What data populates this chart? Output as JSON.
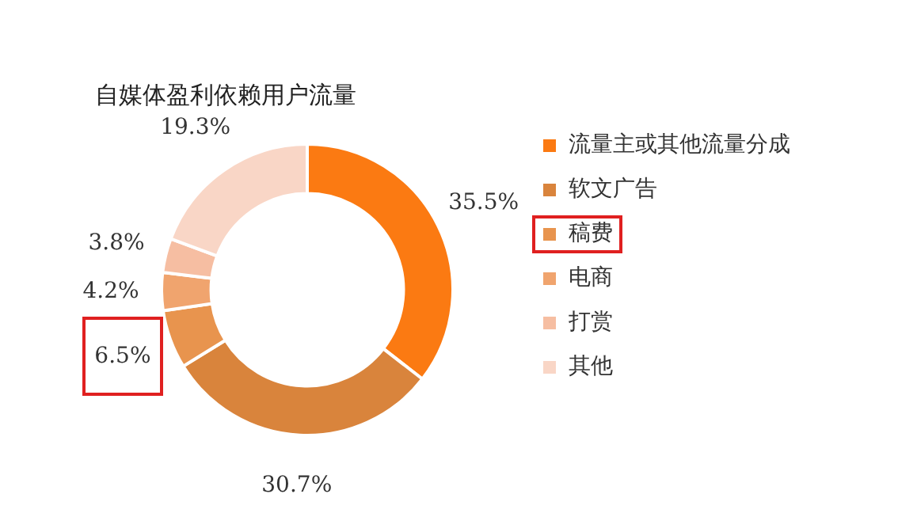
{
  "chart_data": {
    "type": "donut",
    "title": "自媒体盈利依赖用户流量",
    "categories": [
      "流量主或其他流量分成",
      "软文广告",
      "稿费",
      "电商",
      "打赏",
      "其他"
    ],
    "values": [
      35.5,
      30.7,
      6.5,
      4.2,
      3.8,
      19.3
    ],
    "colors": [
      "#fb7a12",
      "#d9843c",
      "#e8944e",
      "#f0a46e",
      "#f6bea2",
      "#f9d6c6"
    ],
    "value_labels": [
      "35.5%",
      "30.7%",
      "6.5%",
      "4.2%",
      "3.8%",
      "19.3%"
    ],
    "legend": "right"
  }
}
